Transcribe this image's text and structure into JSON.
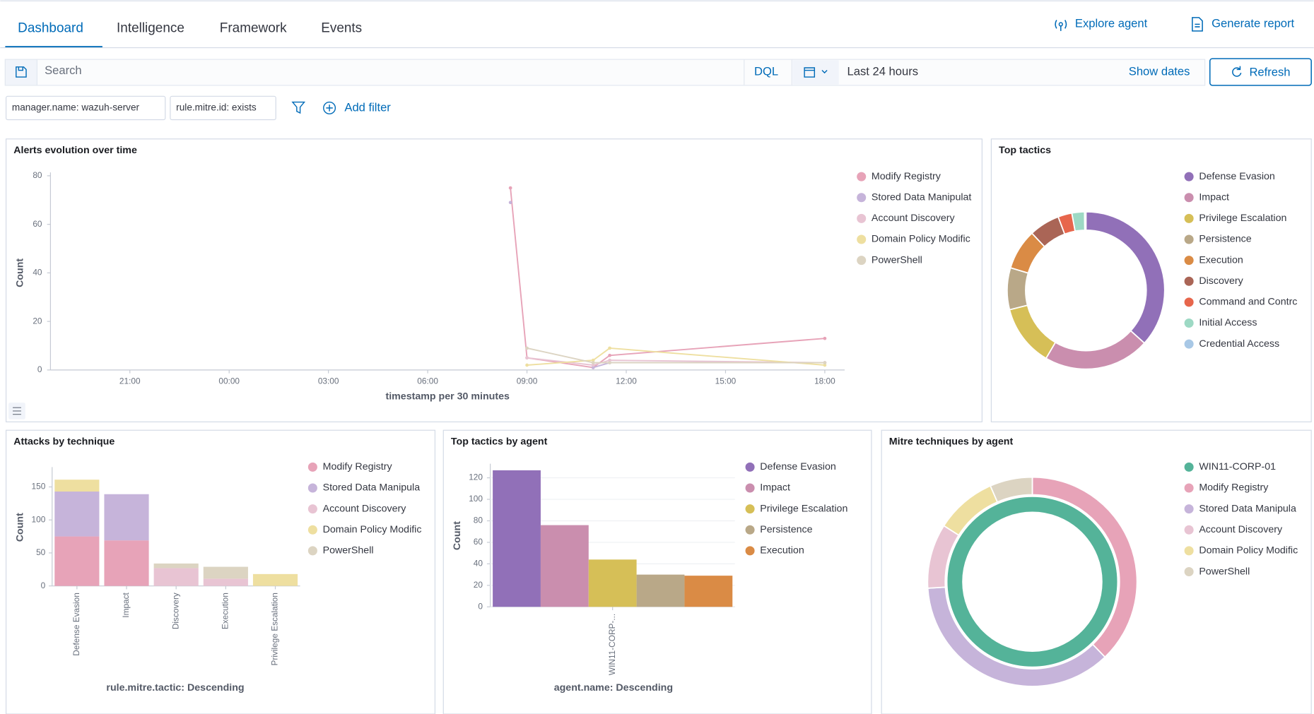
{
  "tabs": [
    "Dashboard",
    "Intelligence",
    "Framework",
    "Events"
  ],
  "actions": [
    "Explore agent",
    "Generate report"
  ],
  "search": {
    "placeholder": "Search",
    "language": "DQL",
    "time_range": "Last 24 hours",
    "show_dates": "Show dates",
    "refresh": "Refresh"
  },
  "filters": [
    "manager.name: wazuh-server",
    "rule.mitre.id: exists"
  ],
  "add_filter": "Add filter",
  "chart_data": [
    {
      "type": "line",
      "title": "Alerts evolution over time",
      "x_label": "timestamp per 30 minutes",
      "y_label": "Count",
      "x": [
        32.5,
        33,
        35,
        35.5,
        42
      ],
      "xlim": [
        18.6,
        42.6
      ],
      "xticks": [
        {
          "value": 21,
          "label": "21:00"
        },
        {
          "value": 24,
          "label": "00:00"
        },
        {
          "value": 27,
          "label": "03:00"
        },
        {
          "value": 30,
          "label": "06:00"
        },
        {
          "value": 33,
          "label": "09:00"
        },
        {
          "value": 36,
          "label": "12:00"
        },
        {
          "value": 39,
          "label": "15:00"
        },
        {
          "value": 42,
          "label": "18:00"
        }
      ],
      "ylim": [
        0,
        80
      ],
      "yticks": [
        0,
        20,
        40,
        60,
        80
      ],
      "grid": false,
      "series": [
        {
          "name": "Modify Registry",
          "color": "#e7a3b8",
          "values": [
            75,
            5,
            1,
            6,
            13
          ]
        },
        {
          "name": "Stored Data Manipulat",
          "color": "#c6b4da",
          "values": [
            69,
            null,
            1,
            3,
            3
          ]
        },
        {
          "name": "Account Discovery",
          "color": "#e8c4d3",
          "values": [
            null,
            5,
            2,
            4,
            3
          ]
        },
        {
          "name": "Domain Policy Modific",
          "color": "#eedfa0",
          "values": [
            null,
            2,
            4,
            9,
            2
          ]
        },
        {
          "name": "PowerShell",
          "color": "#dcd4c2",
          "values": [
            null,
            9,
            3,
            3,
            3
          ]
        }
      ]
    },
    {
      "type": "pie",
      "title": "Top tactics",
      "rings": [
        {
          "labels": [
            "Defense Evasion",
            "Impact",
            "Privilege Escalation",
            "Persistence",
            "Execution",
            "Discovery",
            "Command and Contrc",
            "Initial Access",
            "Credential Access"
          ],
          "values": [
            128,
            76,
            44,
            30,
            29,
            22,
            10,
            9,
            1
          ],
          "colors": [
            "#9170b8",
            "#ca8eae",
            "#d6bf57",
            "#b9a888",
            "#da8b45",
            "#aa6556",
            "#e7664c",
            "#9dd9c4",
            "#a8c8e6"
          ]
        }
      ]
    },
    {
      "type": "bar",
      "stacked": true,
      "title": "Attacks by technique",
      "x_label": "rule.mitre.tactic: Descending",
      "y_label": "Count",
      "categories": [
        "Defense Evasion",
        "Impact",
        "Discovery",
        "Execution",
        "Privilege Escalation"
      ],
      "ylim": [
        0,
        175
      ],
      "yticks": [
        0,
        50,
        100,
        150
      ],
      "grid": false,
      "series": [
        {
          "name": "Modify Registry",
          "color": "#e7a3b8",
          "values": [
            75,
            69,
            0,
            0,
            0
          ]
        },
        {
          "name": "Stored Data Manipula",
          "color": "#c6b4da",
          "values": [
            68,
            70,
            0,
            0,
            0
          ]
        },
        {
          "name": "Account Discovery",
          "color": "#e8c4d3",
          "values": [
            0,
            0,
            27,
            11,
            0
          ]
        },
        {
          "name": "Domain Policy Modific",
          "color": "#eedfa0",
          "values": [
            18,
            0,
            0,
            0,
            18
          ]
        },
        {
          "name": "PowerShell",
          "color": "#dcd4c2",
          "values": [
            0,
            0,
            7,
            18,
            0
          ]
        }
      ]
    },
    {
      "type": "bar",
      "stacked": false,
      "title": "Top tactics by agent",
      "x_label": "agent.name: Descending",
      "y_label": "Count",
      "categories": [
        "WIN11-CORP-..."
      ],
      "ylim": [
        0,
        130
      ],
      "yticks": [
        0,
        20,
        40,
        60,
        80,
        100,
        120
      ],
      "grid": true,
      "series": [
        {
          "name": "Defense Evasion",
          "color": "#9170b8",
          "values": [
            127
          ]
        },
        {
          "name": "Impact",
          "color": "#ca8eae",
          "values": [
            76
          ]
        },
        {
          "name": "Privilege Escalation",
          "color": "#d6bf57",
          "values": [
            44
          ]
        },
        {
          "name": "Persistence",
          "color": "#b9a888",
          "values": [
            30
          ]
        },
        {
          "name": "Execution",
          "color": "#da8b45",
          "values": [
            29
          ]
        }
      ]
    },
    {
      "type": "pie",
      "title": "Mitre techniques by agent",
      "rings": [
        {
          "labels": [
            "WIN11-CORP-01"
          ],
          "values": [
            381
          ],
          "colors": [
            "#54b399"
          ]
        },
        {
          "labels": [
            "Modify Registry",
            "Stored Data Manipula",
            "Account Discovery",
            "Domain Policy Modific",
            "PowerShell"
          ],
          "values": [
            144,
            138,
            38,
            36,
            25
          ],
          "colors": [
            "#e7a3b8",
            "#c6b4da",
            "#e8c4d3",
            "#eedfa0",
            "#dcd4c2"
          ]
        }
      ]
    }
  ]
}
